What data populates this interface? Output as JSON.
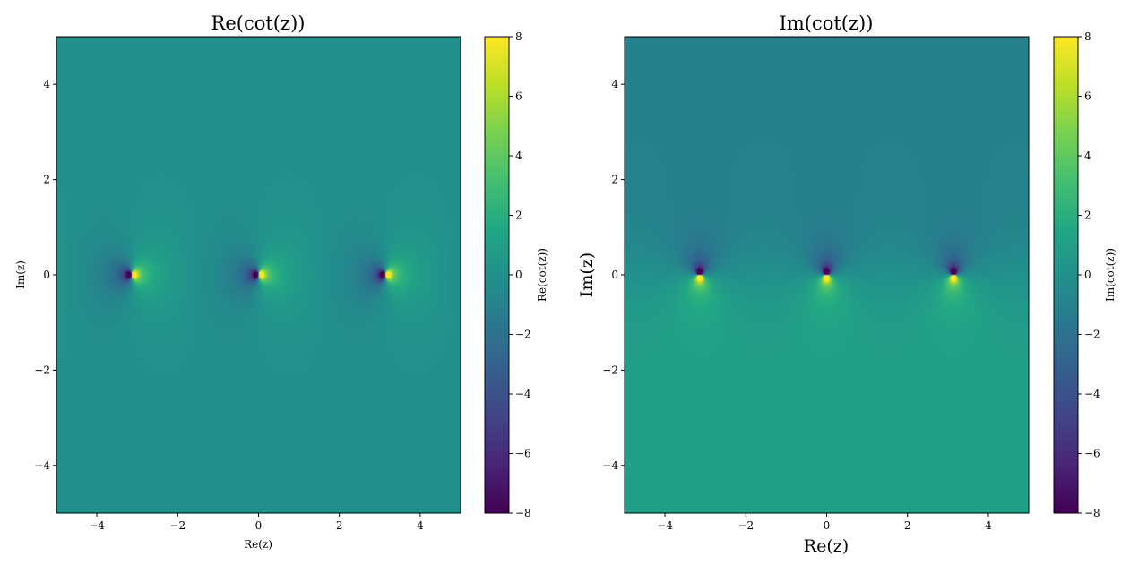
{
  "chart_data": [
    {
      "type": "heatmap",
      "title": "Re(cot(z))",
      "xlabel": "Re(z)",
      "ylabel": "Im(z)",
      "xlim": [
        -5,
        5
      ],
      "ylim": [
        -5,
        5
      ],
      "xticks": [
        "−4",
        "−2",
        "0",
        "2",
        "4"
      ],
      "yticks": [
        "−4",
        "−2",
        "0",
        "2",
        "4"
      ],
      "xtick_values": [
        -4,
        -2,
        0,
        2,
        4
      ],
      "ytick_values": [
        -4,
        -2,
        0,
        2,
        4
      ],
      "function": "Re(cot(z))",
      "colormap": "viridis",
      "colorbar": {
        "label": "Re(cot(z))",
        "vmin": -8,
        "vmax": 8,
        "ticks": [
          "−8",
          "−6",
          "−4",
          "−2",
          "0",
          "2",
          "4",
          "6",
          "8"
        ],
        "tick_values": [
          -8,
          -6,
          -4,
          -2,
          0,
          2,
          4,
          6,
          8
        ]
      },
      "poles": [
        -3.14159,
        0,
        3.14159
      ],
      "grid": false
    },
    {
      "type": "heatmap",
      "title": "Im(cot(z))",
      "xlabel": "Re(z)",
      "ylabel": "Im(z)",
      "xlim": [
        -5,
        5
      ],
      "ylim": [
        -5,
        5
      ],
      "xticks": [
        "−4",
        "−2",
        "0",
        "2",
        "4"
      ],
      "yticks": [
        "−4",
        "−2",
        "0",
        "2",
        "4"
      ],
      "xtick_values": [
        -4,
        -2,
        0,
        2,
        4
      ],
      "ytick_values": [
        -4,
        -2,
        0,
        2,
        4
      ],
      "function": "Im(cot(z))",
      "colormap": "viridis",
      "colorbar": {
        "label": "Im(cot(z))",
        "vmin": -8,
        "vmax": 8,
        "ticks": [
          "−8",
          "−6",
          "−4",
          "−2",
          "0",
          "2",
          "4",
          "6",
          "8"
        ],
        "tick_values": [
          -8,
          -6,
          -4,
          -2,
          0,
          2,
          4,
          6,
          8
        ]
      },
      "poles": [
        -3.14159,
        0,
        3.14159
      ],
      "grid": false
    }
  ]
}
